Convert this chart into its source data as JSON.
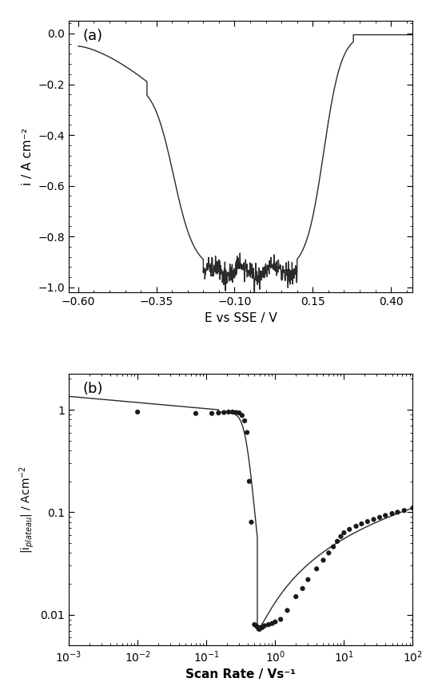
{
  "panel_a": {
    "xlabel": "E vs SSE / V",
    "ylabel": "i / A cm⁻²",
    "xlim": [
      -0.63,
      0.47
    ],
    "ylim": [
      -1.02,
      0.05
    ],
    "xticks": [
      -0.6,
      -0.35,
      -0.1,
      0.15,
      0.4
    ],
    "yticks": [
      0.0,
      -0.2,
      -0.4,
      -0.6,
      -0.8,
      -1.0
    ],
    "label": "(a)"
  },
  "panel_b": {
    "xlabel": "Scan Rate / Vs⁻¹",
    "ylabel": "|i$_{plateau}$| / Acm$^{-2}$",
    "label": "(b)"
  },
  "line_color": "#2a2a2a",
  "marker_color": "#1a1a1a",
  "bg_color": "#ffffff"
}
